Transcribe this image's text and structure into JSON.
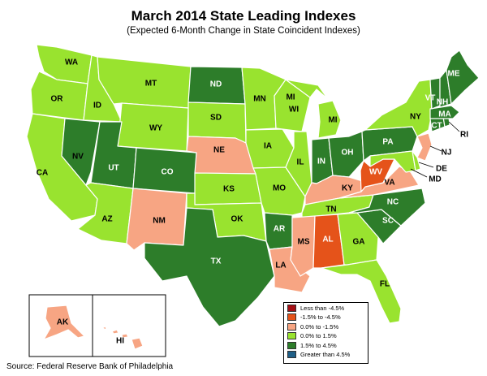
{
  "title": "March 2014 State Leading Indexes",
  "subtitle": "(Expected 6-Month Change in State Coincident Indexes)",
  "source": "Source: Federal Reserve Bank of Philadelphia",
  "colors": {
    "lt_neg45": "#a50f15",
    "neg15_neg45": "#e5531a",
    "zero_neg15": "#f7a583",
    "zero_15": "#99e32f",
    "p15_45": "#2d7d2a",
    "gt_45": "#1f5f87",
    "border": "#ffffff"
  },
  "legend": [
    {
      "label": "Less than -4.5%",
      "color_key": "lt_neg45"
    },
    {
      "label": "-1.5% to -4.5%",
      "color_key": "neg15_neg45"
    },
    {
      "label": "0.0% to -1.5%",
      "color_key": "zero_neg15"
    },
    {
      "label": "0.0% to  1.5%",
      "color_key": "zero_15"
    },
    {
      "label": "1.5% to  4.5%",
      "color_key": "p15_45"
    },
    {
      "label": "Greater than 4.5%",
      "color_key": "gt_45"
    }
  ],
  "states": [
    {
      "abbr": "WA",
      "cat": "zero_15"
    },
    {
      "abbr": "OR",
      "cat": "zero_15"
    },
    {
      "abbr": "CA",
      "cat": "zero_15"
    },
    {
      "abbr": "ID",
      "cat": "zero_15"
    },
    {
      "abbr": "NV",
      "cat": "p15_45"
    },
    {
      "abbr": "MT",
      "cat": "zero_15"
    },
    {
      "abbr": "WY",
      "cat": "zero_15"
    },
    {
      "abbr": "UT",
      "cat": "p15_45"
    },
    {
      "abbr": "AZ",
      "cat": "zero_15"
    },
    {
      "abbr": "CO",
      "cat": "p15_45"
    },
    {
      "abbr": "NM",
      "cat": "zero_neg15"
    },
    {
      "abbr": "ND",
      "cat": "p15_45"
    },
    {
      "abbr": "SD",
      "cat": "zero_15"
    },
    {
      "abbr": "NE",
      "cat": "zero_neg15"
    },
    {
      "abbr": "KS",
      "cat": "zero_15"
    },
    {
      "abbr": "OK",
      "cat": "zero_15"
    },
    {
      "abbr": "TX",
      "cat": "p15_45"
    },
    {
      "abbr": "MN",
      "cat": "zero_15"
    },
    {
      "abbr": "IA",
      "cat": "zero_15"
    },
    {
      "abbr": "MO",
      "cat": "zero_15"
    },
    {
      "abbr": "AR",
      "cat": "p15_45"
    },
    {
      "abbr": "LA",
      "cat": "zero_neg15"
    },
    {
      "abbr": "WI",
      "cat": "zero_15"
    },
    {
      "abbr": "IL",
      "cat": "zero_15"
    },
    {
      "abbr": "MI",
      "cat": "zero_15"
    },
    {
      "abbr": "IN",
      "cat": "p15_45"
    },
    {
      "abbr": "OH",
      "cat": "p15_45"
    },
    {
      "abbr": "KY",
      "cat": "zero_neg15"
    },
    {
      "abbr": "TN",
      "cat": "zero_15"
    },
    {
      "abbr": "MS",
      "cat": "zero_neg15"
    },
    {
      "abbr": "AL",
      "cat": "neg15_neg45"
    },
    {
      "abbr": "GA",
      "cat": "zero_15"
    },
    {
      "abbr": "FL",
      "cat": "zero_15"
    },
    {
      "abbr": "SC",
      "cat": "p15_45"
    },
    {
      "abbr": "NC",
      "cat": "p15_45"
    },
    {
      "abbr": "VA",
      "cat": "zero_neg15"
    },
    {
      "abbr": "WV",
      "cat": "neg15_neg45"
    },
    {
      "abbr": "PA",
      "cat": "p15_45"
    },
    {
      "abbr": "NY",
      "cat": "zero_15"
    },
    {
      "abbr": "MD",
      "cat": "zero_15"
    },
    {
      "abbr": "DE",
      "cat": "zero_15"
    },
    {
      "abbr": "NJ",
      "cat": "zero_neg15"
    },
    {
      "abbr": "CT",
      "cat": "p15_45"
    },
    {
      "abbr": "RI",
      "cat": "p15_45"
    },
    {
      "abbr": "MA",
      "cat": "p15_45"
    },
    {
      "abbr": "VT",
      "cat": "p15_45"
    },
    {
      "abbr": "NH",
      "cat": "p15_45"
    },
    {
      "abbr": "ME",
      "cat": "p15_45"
    },
    {
      "abbr": "AK",
      "cat": "zero_neg15"
    },
    {
      "abbr": "HI",
      "cat": "zero_neg15"
    }
  ]
}
